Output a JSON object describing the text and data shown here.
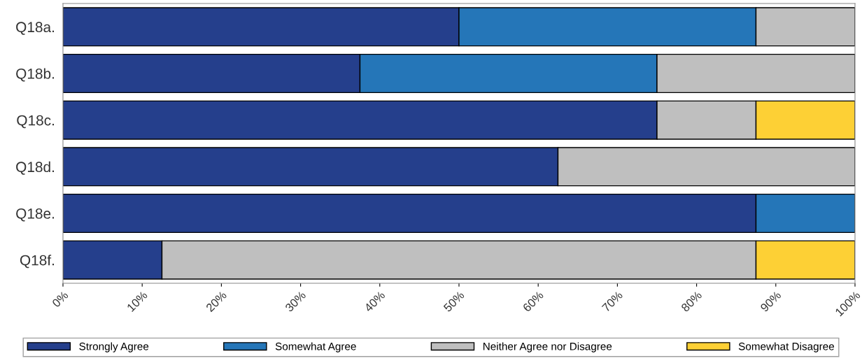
{
  "chart_data": {
    "type": "bar",
    "orientation": "horizontal",
    "stacked": true,
    "categories": [
      "Q18a.",
      "Q18b.",
      "Q18c.",
      "Q18d.",
      "Q18e.",
      "Q18f."
    ],
    "series": [
      {
        "name": "Strongly Agree",
        "color": "#253f8c",
        "values": [
          50,
          37.5,
          75,
          62.5,
          87.5,
          12.5
        ]
      },
      {
        "name": "Somewhat Agree",
        "color": "#2576b8",
        "values": [
          37.5,
          37.5,
          null,
          null,
          12.5,
          null
        ]
      },
      {
        "name": "Neither Agree nor Disagree",
        "color": "#bfbfbf",
        "values": [
          12.5,
          25,
          12.5,
          37.5,
          null,
          75
        ]
      },
      {
        "name": "Somewhat Disagree",
        "color": "#fdd035",
        "values": [
          null,
          null,
          12.5,
          null,
          null,
          12.5
        ]
      }
    ],
    "xlim": [
      0,
      100
    ],
    "xticks": [
      {
        "value": 0,
        "label": "0%"
      },
      {
        "value": 10,
        "label": "10%"
      },
      {
        "value": 20,
        "label": "20%"
      },
      {
        "value": 30,
        "label": "30%"
      },
      {
        "value": 40,
        "label": "40%"
      },
      {
        "value": 50,
        "label": "50%"
      },
      {
        "value": 60,
        "label": "60%"
      },
      {
        "value": 70,
        "label": "70%"
      },
      {
        "value": 80,
        "label": "80%"
      },
      {
        "value": 90,
        "label": "90%"
      },
      {
        "value": 100,
        "label": "100%"
      }
    ],
    "grid": false,
    "legend": "bottom"
  }
}
